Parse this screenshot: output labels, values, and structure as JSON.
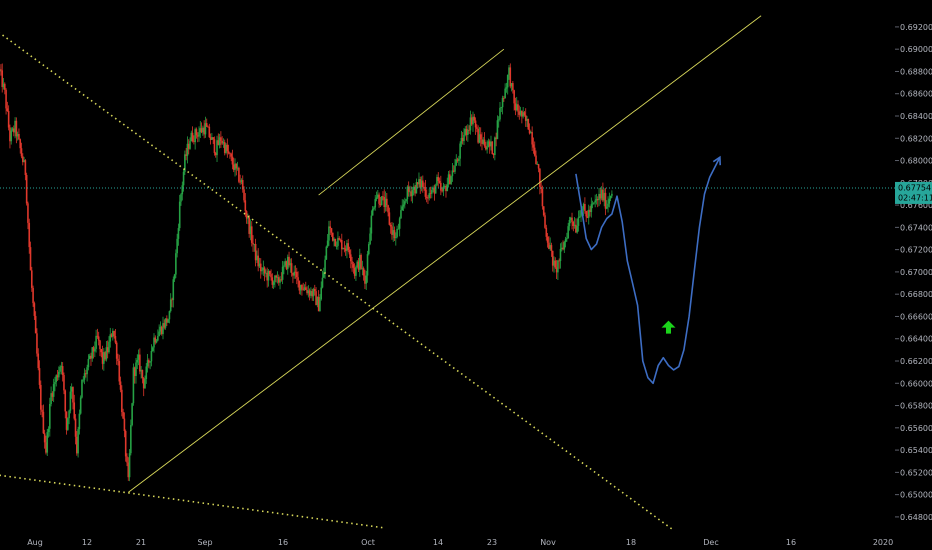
{
  "chart_data": {
    "type": "candlestick",
    "title": "",
    "xlabel": "",
    "ylabel": "",
    "ylim": [
      0.647,
      0.6928
    ],
    "grid": false,
    "colors": {
      "background": "#000000",
      "up": "#26a245",
      "down": "#e0382c",
      "trendline": "#d8d85a",
      "projection": "#3d6dc4",
      "price_line": "#27a69a",
      "arrow": "#1bd41b",
      "axis_text": "#b2b5be"
    },
    "y_ticks": [
      "0.69200",
      "0.69000",
      "0.68800",
      "0.68600",
      "0.68400",
      "0.68200",
      "0.68000",
      "0.67800",
      "0.67600",
      "0.67400",
      "0.67200",
      "0.67000",
      "0.66800",
      "0.66600",
      "0.66400",
      "0.66200",
      "0.66000",
      "0.65800",
      "0.65600",
      "0.65400",
      "0.65200",
      "0.65000",
      "0.64800"
    ],
    "x_ticks": [
      "Aug",
      "12",
      "Sep",
      "16",
      "Oct",
      "14",
      "23",
      "Nov",
      "18",
      "Dec",
      "16",
      "2020"
    ],
    "current_price": {
      "value": "0.67754",
      "countdown": "02:47:11"
    },
    "price_path": [
      [
        "2019-07-31",
        0.688
      ],
      [
        "2019-08-01",
        0.686
      ],
      [
        "2019-08-02",
        0.682
      ],
      [
        "2019-08-03",
        0.683
      ],
      [
        "2019-08-05",
        0.679
      ],
      [
        "2019-08-06",
        0.67
      ],
      [
        "2019-08-07",
        0.664
      ],
      [
        "2019-08-08",
        0.658
      ],
      [
        "2019-08-09",
        0.654
      ],
      [
        "2019-08-10",
        0.659
      ],
      [
        "2019-08-12",
        0.662
      ],
      [
        "2019-08-13",
        0.656
      ],
      [
        "2019-08-14",
        0.66
      ],
      [
        "2019-08-15",
        0.654
      ],
      [
        "2019-08-16",
        0.66
      ],
      [
        "2019-08-19",
        0.664
      ],
      [
        "2019-08-20",
        0.662
      ],
      [
        "2019-08-21",
        0.663
      ],
      [
        "2019-08-22",
        0.665
      ],
      [
        "2019-08-23",
        0.662
      ],
      [
        "2019-08-25",
        0.651
      ],
      [
        "2019-08-26",
        0.661
      ],
      [
        "2019-08-27",
        0.662
      ],
      [
        "2019-08-28",
        0.66
      ],
      [
        "2019-08-29",
        0.662
      ],
      [
        "2019-08-30",
        0.664
      ],
      [
        "2019-09-02",
        0.666
      ],
      [
        "2019-09-03",
        0.67
      ],
      [
        "2019-09-04",
        0.676
      ],
      [
        "2019-09-05",
        0.68
      ],
      [
        "2019-09-06",
        0.682
      ],
      [
        "2019-09-09",
        0.683
      ],
      [
        "2019-09-10",
        0.682
      ],
      [
        "2019-09-11",
        0.681
      ],
      [
        "2019-09-12",
        0.682
      ],
      [
        "2019-09-13",
        0.681
      ],
      [
        "2019-09-16",
        0.678
      ],
      [
        "2019-09-17",
        0.675
      ],
      [
        "2019-09-18",
        0.673
      ],
      [
        "2019-09-19",
        0.671
      ],
      [
        "2019-09-20",
        0.67
      ],
      [
        "2019-09-23",
        0.669
      ],
      [
        "2019-09-24",
        0.67
      ],
      [
        "2019-09-25",
        0.671
      ],
      [
        "2019-09-26",
        0.67
      ],
      [
        "2019-09-27",
        0.669
      ],
      [
        "2019-09-30",
        0.668
      ],
      [
        "2019-10-01",
        0.667
      ],
      [
        "2019-10-02",
        0.67
      ],
      [
        "2019-10-03",
        0.674
      ],
      [
        "2019-10-04",
        0.673
      ],
      [
        "2019-10-07",
        0.672
      ],
      [
        "2019-10-08",
        0.67
      ],
      [
        "2019-10-09",
        0.671
      ],
      [
        "2019-10-10",
        0.669
      ],
      [
        "2019-10-11",
        0.674
      ],
      [
        "2019-10-12",
        0.677
      ],
      [
        "2019-10-14",
        0.676
      ],
      [
        "2019-10-15",
        0.674
      ],
      [
        "2019-10-16",
        0.673
      ],
      [
        "2019-10-17",
        0.675
      ],
      [
        "2019-10-18",
        0.677
      ],
      [
        "2019-10-21",
        0.678
      ],
      [
        "2019-10-22",
        0.677
      ],
      [
        "2019-10-23",
        0.677
      ],
      [
        "2019-10-24",
        0.678
      ],
      [
        "2019-10-25",
        0.677
      ],
      [
        "2019-10-28",
        0.68
      ],
      [
        "2019-10-29",
        0.682
      ],
      [
        "2019-10-30",
        0.683
      ],
      [
        "2019-10-31",
        0.684
      ],
      [
        "2019-11-01",
        0.682
      ],
      [
        "2019-11-04",
        0.681
      ],
      [
        "2019-11-05",
        0.684
      ],
      [
        "2019-11-06",
        0.686
      ],
      [
        "2019-11-07",
        0.688
      ],
      [
        "2019-11-08",
        0.685
      ],
      [
        "2019-11-11",
        0.683
      ],
      [
        "2019-11-12",
        0.681
      ],
      [
        "2019-11-13",
        0.678
      ],
      [
        "2019-11-14",
        0.674
      ],
      [
        "2019-11-15",
        0.672
      ],
      [
        "2019-11-16",
        0.67
      ],
      [
        "2019-11-18",
        0.673
      ],
      [
        "2019-11-19",
        0.675
      ],
      [
        "2019-11-20",
        0.674
      ],
      [
        "2019-11-21",
        0.676
      ],
      [
        "2019-11-22",
        0.675
      ],
      [
        "2019-11-25",
        0.677
      ],
      [
        "2019-11-26",
        0.676
      ],
      [
        "2019-11-27",
        0.6775
      ]
    ],
    "annotations": {
      "channel_upper": [
        [
          "2019-10-01",
          0.6769
        ],
        [
          "2019-11-06",
          0.69
        ]
      ],
      "channel_lower": [
        [
          "2019-08-25",
          0.6502
        ],
        [
          "2019-12-26",
          0.693
        ]
      ],
      "descending_dotted": [
        [
          "2019-07-30",
          0.6918
        ],
        [
          "2019-12-09",
          0.6468
        ]
      ],
      "support_dotted": [
        [
          "2019-07-30",
          0.6518
        ],
        [
          "2019-10-14",
          0.647
        ]
      ],
      "projection_path": [
        [
          "2019-11-20",
          0.6788
        ],
        [
          "2019-11-21",
          0.676
        ],
        [
          "2019-11-22",
          0.673
        ],
        [
          "2019-11-23",
          0.672
        ],
        [
          "2019-11-24",
          0.6725
        ],
        [
          "2019-11-25",
          0.674
        ],
        [
          "2019-11-26",
          0.6748
        ],
        [
          "2019-11-27",
          0.6752
        ],
        [
          "2019-11-28",
          0.6768
        ],
        [
          "2019-11-29",
          0.6745
        ],
        [
          "2019-11-30",
          0.671
        ],
        [
          "2019-12-01",
          0.669
        ],
        [
          "2019-12-02",
          0.667
        ],
        [
          "2019-12-03",
          0.662
        ],
        [
          "2019-12-04",
          0.6605
        ],
        [
          "2019-12-05",
          0.66
        ],
        [
          "2019-12-06",
          0.6616
        ],
        [
          "2019-12-07",
          0.6623
        ],
        [
          "2019-12-08",
          0.6616
        ],
        [
          "2019-12-09",
          0.6612
        ],
        [
          "2019-12-10",
          0.6615
        ],
        [
          "2019-12-11",
          0.663
        ],
        [
          "2019-12-12",
          0.666
        ],
        [
          "2019-12-13",
          0.67
        ],
        [
          "2019-12-14",
          0.674
        ],
        [
          "2019-12-15",
          0.677
        ],
        [
          "2019-12-16",
          0.6785
        ],
        [
          "2019-12-18",
          0.6803
        ]
      ],
      "up_arrow": [
        "2019-12-08",
        0.665
      ]
    }
  }
}
